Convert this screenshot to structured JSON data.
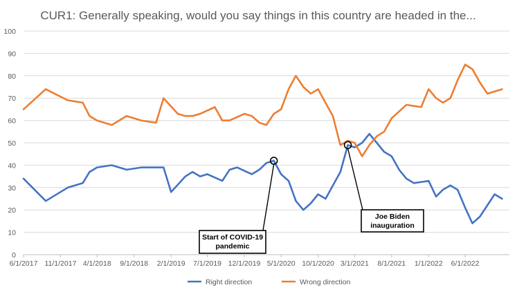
{
  "chart_data": {
    "type": "line",
    "title": "CUR1: Generally speaking, would you say things in this country are headed in the...",
    "xlabel": "",
    "ylabel": "",
    "ylim": [
      0,
      100
    ],
    "yticks": [
      "0",
      "10",
      "20",
      "30",
      "40",
      "50",
      "60",
      "70",
      "80",
      "90",
      "100"
    ],
    "xlim": [
      "2017-06-01",
      "2022-12-01"
    ],
    "xtick_dates": [
      "2017-06-01",
      "2017-11-01",
      "2018-04-01",
      "2018-09-01",
      "2019-02-01",
      "2019-07-01",
      "2019-12-01",
      "2020-05-01",
      "2020-10-01",
      "2021-03-01",
      "2021-08-01",
      "2022-01-01",
      "2022-06-01"
    ],
    "xtick_labels": [
      "6/1/2017",
      "11/1/2017",
      "4/1/2018",
      "9/1/2018",
      "2/1/2019",
      "7/1/2019",
      "12/1/2019",
      "5/1/2020",
      "10/1/2020",
      "3/1/2021",
      "8/1/2021",
      "1/1/2022",
      "6/1/2022"
    ],
    "grid": true,
    "legend_position": "bottom",
    "series": [
      {
        "name": "Right direction",
        "color": "#4472C4",
        "points": [
          [
            "2017-06-01",
            34
          ],
          [
            "2017-09-01",
            24
          ],
          [
            "2017-12-01",
            30
          ],
          [
            "2018-02-01",
            32
          ],
          [
            "2018-03-01",
            37
          ],
          [
            "2018-04-01",
            39
          ],
          [
            "2018-06-01",
            40
          ],
          [
            "2018-08-01",
            38
          ],
          [
            "2018-10-01",
            39
          ],
          [
            "2018-12-01",
            39
          ],
          [
            "2019-01-01",
            39
          ],
          [
            "2019-02-01",
            28
          ],
          [
            "2019-04-01",
            35
          ],
          [
            "2019-05-01",
            37
          ],
          [
            "2019-06-01",
            35
          ],
          [
            "2019-07-01",
            36
          ],
          [
            "2019-09-01",
            33
          ],
          [
            "2019-10-01",
            38
          ],
          [
            "2019-11-01",
            39
          ],
          [
            "2020-01-01",
            36
          ],
          [
            "2020-02-01",
            38
          ],
          [
            "2020-03-01",
            41
          ],
          [
            "2020-04-01",
            42
          ],
          [
            "2020-05-01",
            36
          ],
          [
            "2020-06-01",
            33
          ],
          [
            "2020-07-01",
            24
          ],
          [
            "2020-08-01",
            20
          ],
          [
            "2020-09-01",
            23
          ],
          [
            "2020-10-01",
            27
          ],
          [
            "2020-11-01",
            25
          ],
          [
            "2021-01-01",
            37
          ],
          [
            "2021-02-01",
            49
          ],
          [
            "2021-03-01",
            48
          ],
          [
            "2021-04-01",
            50
          ],
          [
            "2021-05-01",
            54
          ],
          [
            "2021-06-01",
            50
          ],
          [
            "2021-07-01",
            46
          ],
          [
            "2021-08-01",
            44
          ],
          [
            "2021-09-01",
            38
          ],
          [
            "2021-10-01",
            34
          ],
          [
            "2021-11-01",
            32
          ],
          [
            "2022-01-01",
            33
          ],
          [
            "2022-02-01",
            26
          ],
          [
            "2022-03-01",
            29
          ],
          [
            "2022-04-01",
            31
          ],
          [
            "2022-05-01",
            29
          ],
          [
            "2022-06-01",
            21
          ],
          [
            "2022-07-01",
            14
          ],
          [
            "2022-08-01",
            17
          ],
          [
            "2022-10-01",
            27
          ],
          [
            "2022-11-01",
            25
          ]
        ]
      },
      {
        "name": "Wrong direction",
        "color": "#ED7D31",
        "points": [
          [
            "2017-06-01",
            65
          ],
          [
            "2017-09-01",
            74
          ],
          [
            "2017-12-01",
            69
          ],
          [
            "2018-02-01",
            68
          ],
          [
            "2018-03-01",
            62
          ],
          [
            "2018-04-01",
            60
          ],
          [
            "2018-06-01",
            58
          ],
          [
            "2018-08-01",
            62
          ],
          [
            "2018-10-01",
            60
          ],
          [
            "2018-12-01",
            59
          ],
          [
            "2019-01-01",
            70
          ],
          [
            "2019-03-01",
            63
          ],
          [
            "2019-04-01",
            62
          ],
          [
            "2019-05-01",
            62
          ],
          [
            "2019-06-01",
            63
          ],
          [
            "2019-08-01",
            66
          ],
          [
            "2019-09-01",
            60
          ],
          [
            "2019-10-01",
            60
          ],
          [
            "2019-12-01",
            63
          ],
          [
            "2020-01-01",
            62
          ],
          [
            "2020-02-01",
            59
          ],
          [
            "2020-03-01",
            58
          ],
          [
            "2020-04-01",
            63
          ],
          [
            "2020-05-01",
            65
          ],
          [
            "2020-06-01",
            74
          ],
          [
            "2020-07-01",
            80
          ],
          [
            "2020-08-01",
            75
          ],
          [
            "2020-09-01",
            72
          ],
          [
            "2020-10-01",
            74
          ],
          [
            "2020-12-01",
            62
          ],
          [
            "2021-01-01",
            49
          ],
          [
            "2021-02-01",
            51
          ],
          [
            "2021-03-01",
            50
          ],
          [
            "2021-04-01",
            44
          ],
          [
            "2021-05-01",
            49
          ],
          [
            "2021-06-01",
            53
          ],
          [
            "2021-07-01",
            55
          ],
          [
            "2021-08-01",
            61
          ],
          [
            "2021-10-01",
            67
          ],
          [
            "2021-12-01",
            66
          ],
          [
            "2022-01-01",
            74
          ],
          [
            "2022-02-01",
            70
          ],
          [
            "2022-03-01",
            68
          ],
          [
            "2022-04-01",
            70
          ],
          [
            "2022-05-01",
            78
          ],
          [
            "2022-06-01",
            85
          ],
          [
            "2022-07-01",
            83
          ],
          [
            "2022-08-01",
            77
          ],
          [
            "2022-09-01",
            72
          ],
          [
            "2022-11-01",
            74
          ]
        ]
      }
    ],
    "annotations": [
      {
        "lines": [
          "Start of COVID-19",
          "pandemic"
        ],
        "x": "2020-04-01",
        "y": 42
      },
      {
        "lines": [
          "Joe Biden",
          "inauguration"
        ],
        "x": "2021-02-01",
        "y": 49
      }
    ]
  }
}
